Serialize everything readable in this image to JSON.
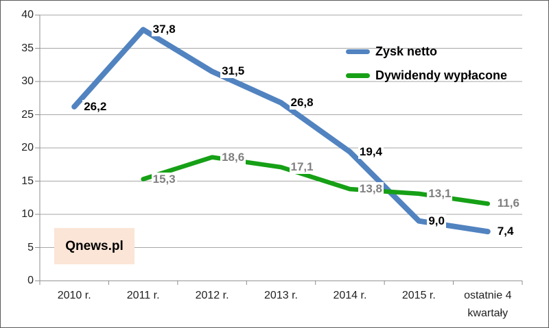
{
  "chart_data": {
    "type": "line",
    "title": "",
    "categories": [
      [
        "2010 r."
      ],
      [
        "2011 r."
      ],
      [
        "2012 r."
      ],
      [
        "2013 r."
      ],
      [
        "2014 r."
      ],
      [
        "2015 r."
      ],
      [
        "ostatnie 4",
        "kwartały"
      ]
    ],
    "series": [
      {
        "name": "Zysk netto",
        "color": "#5183C0",
        "values": [
          26.2,
          37.8,
          31.5,
          26.8,
          19.4,
          9.0,
          7.4
        ],
        "labels": [
          "26,2",
          "37,8",
          "31,5",
          "26,8",
          "19,4",
          "9,0",
          "7,4"
        ],
        "label_color": "#000000"
      },
      {
        "name": "Dywidendy wypłacone",
        "color": "#16A016",
        "values": [
          null,
          15.3,
          18.6,
          17.1,
          13.8,
          13.1,
          11.6
        ],
        "labels": [
          "",
          "15,3",
          "18,6",
          "17,1",
          "13,8",
          "13,1",
          "11,6"
        ],
        "label_color": "#7F7F7F"
      }
    ],
    "ylim": [
      0,
      40
    ],
    "ytick_step": 5,
    "yticks": [
      "0",
      "5",
      "10",
      "15",
      "20",
      "25",
      "30",
      "35",
      "40"
    ],
    "grid": true,
    "legend_position": "upper right",
    "gridline_color": "#A6A6A6",
    "axis_color": "#8C8C8C"
  },
  "watermark": {
    "text": "Qnews.pl",
    "bg_color": "#FBE5D6"
  }
}
